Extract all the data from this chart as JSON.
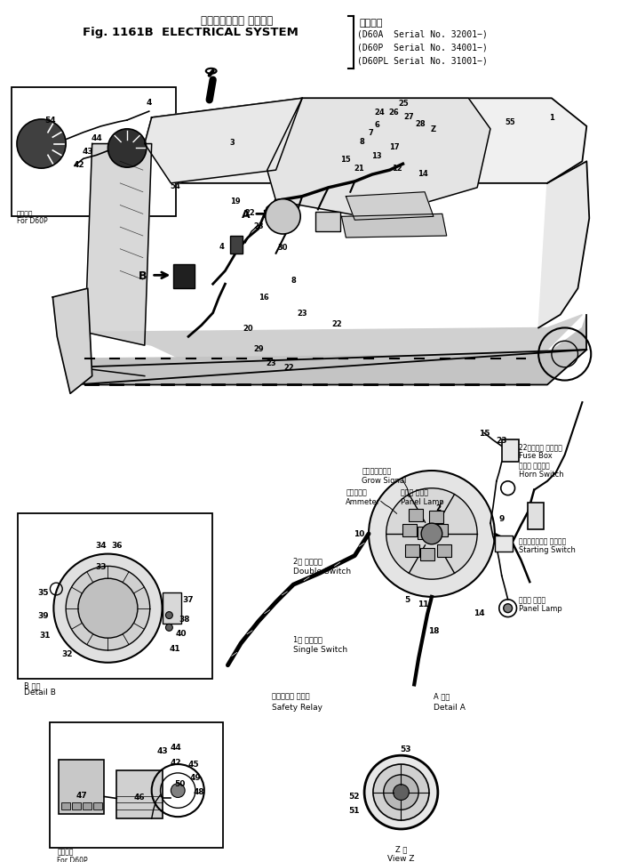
{
  "bg_color": "#ffffff",
  "fig_width": 6.99,
  "fig_height": 9.7,
  "dpi": 100,
  "title_jp": "エレクトリカル システム",
  "title_en": "Fig. 1161B  ELECTRICAL SYSTEM",
  "serial_header_jp": "適用号機",
  "serial_line1": "D60A  Serial No. 32001−)",
  "serial_line2": "D60P  Serial No. 34001−)",
  "serial_line3": "D60PL Serial No. 31001−)",
  "line_color": "#000000",
  "label_fontsize": 7,
  "title_fontsize_jp": 8.5,
  "title_fontsize_en": 9.5
}
